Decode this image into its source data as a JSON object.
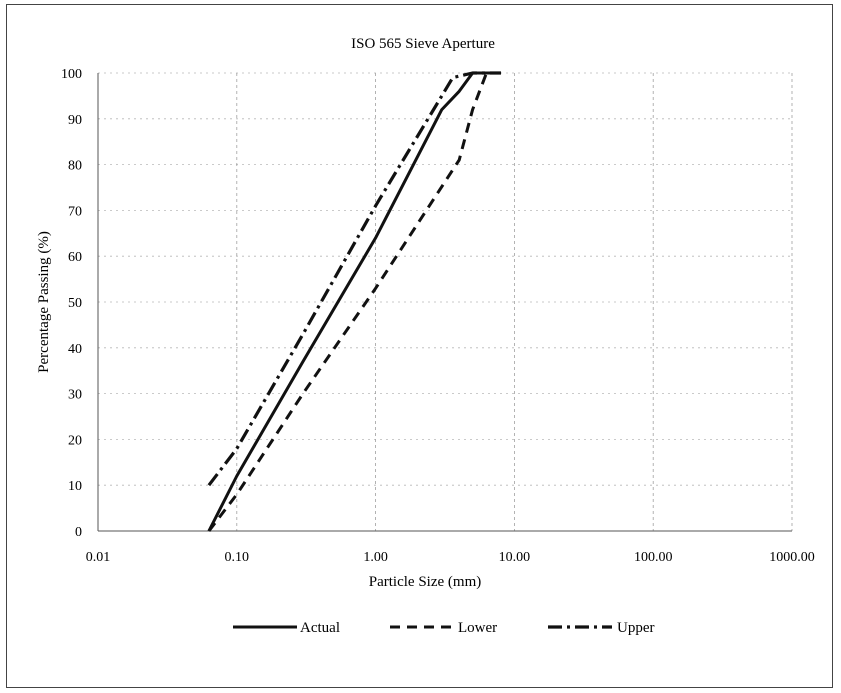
{
  "chart_data": {
    "type": "line",
    "title": "ISO 565 Sieve Aperture",
    "xlabel": "Particle Size (mm)",
    "ylabel": "Percentage Passing (%)",
    "x_scale": "log",
    "xlim": [
      0.01,
      1000
    ],
    "ylim": [
      0,
      100
    ],
    "x_ticks": [
      "0.01",
      "0.10",
      "1.00",
      "10.00",
      "100.00",
      "1000.00"
    ],
    "y_ticks": [
      "0",
      "10",
      "20",
      "30",
      "40",
      "50",
      "60",
      "70",
      "80",
      "90",
      "100"
    ],
    "grid": true,
    "legend_position": "bottom",
    "series": [
      {
        "name": "Actual",
        "style": "solid",
        "x": [
          0.063,
          0.1,
          0.3,
          1.0,
          3.0,
          4.0,
          5.0,
          8.0
        ],
        "y": [
          0,
          12,
          37,
          64,
          92,
          96,
          100,
          100
        ]
      },
      {
        "name": "Lower",
        "style": "dashed",
        "x": [
          0.063,
          0.1,
          0.3,
          1.0,
          2.0,
          4.0,
          5.0,
          6.3,
          8.0
        ],
        "y": [
          0,
          8,
          30,
          53,
          67,
          81,
          92,
          100,
          100
        ]
      },
      {
        "name": "Upper",
        "style": "dashdot",
        "x": [
          0.063,
          0.1,
          0.3,
          1.0,
          3.0,
          3.6,
          5.0,
          8.0
        ],
        "y": [
          10,
          18,
          43,
          71,
          95,
          99,
          100,
          100
        ]
      }
    ]
  }
}
